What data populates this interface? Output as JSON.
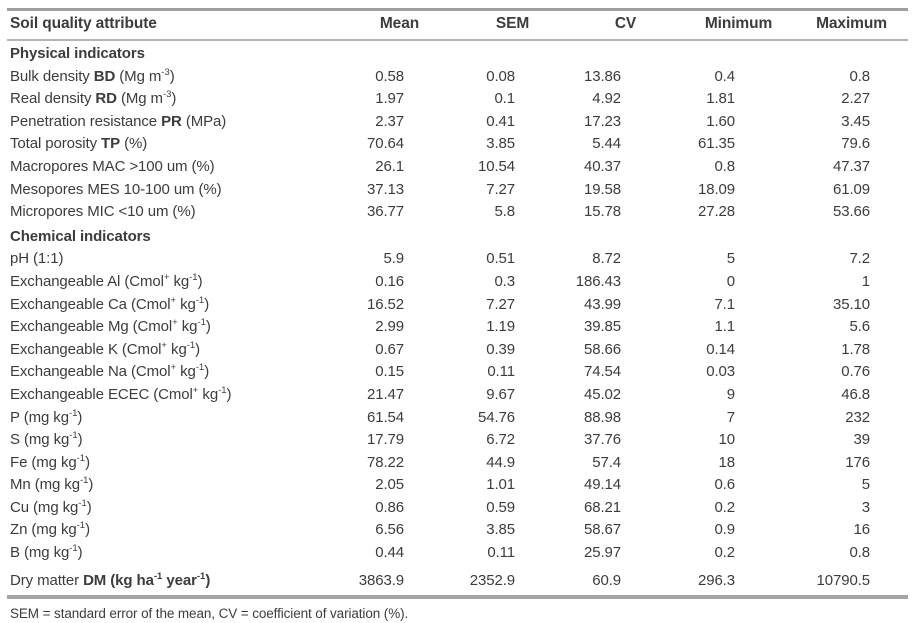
{
  "colors": {
    "text": "#3c3c3c",
    "rule_top": "#9e9e9e",
    "rule_header": "#b3b3b3",
    "rule_bottom": "#a4a4a4"
  },
  "table": {
    "columns": [
      "Soil quality attribute",
      "Mean",
      "SEM",
      "CV",
      "Minimum",
      "Maximum"
    ],
    "sections": [
      {
        "title": "Physical indicators",
        "rows": [
          {
            "label": "Bulk density <b>BD</b> (Mg m<sup>-3</sup>)",
            "values": [
              "0.58",
              "0.08",
              "13.86",
              "0.4",
              "0.8"
            ]
          },
          {
            "label": "Real density <b>RD</b> (Mg m<sup>-3</sup>)",
            "values": [
              "1.97",
              "0.1",
              "4.92",
              "1.81",
              "2.27"
            ]
          },
          {
            "label": "Penetration resistance <b>PR</b> (MPa)",
            "values": [
              "2.37",
              "0.41",
              "17.23",
              "1.60",
              "3.45"
            ]
          },
          {
            "label": "Total porosity <b>TP</b> (%)",
            "values": [
              "70.64",
              "3.85",
              "5.44",
              "61.35",
              "79.6"
            ]
          },
          {
            "label": "Macropores MAC &gt;100 um (%)",
            "values": [
              "26.1",
              "10.54",
              "40.37",
              "0.8",
              "47.37"
            ]
          },
          {
            "label": "Mesopores MES 10-100 um (%)",
            "values": [
              "37.13",
              "7.27",
              "19.58",
              "18.09",
              "61.09"
            ]
          },
          {
            "label": "Micropores MIC &lt;10 um (%)",
            "values": [
              "36.77",
              "5.8",
              "15.78",
              "27.28",
              "53.66"
            ]
          }
        ]
      },
      {
        "title": "Chemical indicators",
        "rows": [
          {
            "label": "pH (1:1)",
            "values": [
              "5.9",
              "0.51",
              "8.72",
              "5",
              "7.2"
            ]
          },
          {
            "label": "Exchangeable Al (Cmol<sup>+</sup> kg<sup>-1</sup>)",
            "values": [
              "0.16",
              "0.3",
              "186.43",
              "0",
              "1"
            ]
          },
          {
            "label": "Exchangeable Ca (Cmol<sup>+</sup> kg<sup>-1</sup>)",
            "values": [
              "16.52",
              "7.27",
              "43.99",
              "7.1",
              "35.10"
            ]
          },
          {
            "label": "Exchangeable Mg (Cmol<sup>+</sup> kg<sup>-1</sup>)",
            "values": [
              "2.99",
              "1.19",
              "39.85",
              "1.1",
              "5.6"
            ]
          },
          {
            "label": "Exchangeable K (Cmol<sup>+</sup> kg<sup>-1</sup>)",
            "values": [
              "0.67",
              "0.39",
              "58.66",
              "0.14",
              "1.78"
            ]
          },
          {
            "label": "Exchangeable Na (Cmol<sup>+</sup> kg<sup>-1</sup>)",
            "values": [
              "0.15",
              "0.11",
              "74.54",
              "0.03",
              "0.76"
            ]
          },
          {
            "label": "Exchangeable ECEC (Cmol<sup>+</sup> kg<sup>-1</sup>)",
            "values": [
              "21.47",
              "9.67",
              "45.02",
              "9",
              "46.8"
            ]
          },
          {
            "label": "P (mg kg<sup>-1</sup>)",
            "values": [
              "61.54",
              "54.76",
              "88.98",
              "7",
              "232"
            ]
          },
          {
            "label": "S (mg kg<sup>-1</sup>)",
            "values": [
              "17.79",
              "6.72",
              "37.76",
              "10",
              "39"
            ]
          },
          {
            "label": "Fe (mg kg<sup>-1</sup>)",
            "values": [
              "78.22",
              "44.9",
              "57.4",
              "18",
              "176"
            ]
          },
          {
            "label": "Mn (mg kg<sup>-1</sup>)",
            "values": [
              "2.05",
              "1.01",
              "49.14",
              "0.6",
              "5"
            ]
          },
          {
            "label": "Cu (mg kg<sup>-1</sup>)",
            "values": [
              "0.86",
              "0.59",
              "68.21",
              "0.2",
              "3"
            ]
          },
          {
            "label": "Zn (mg kg<sup>-1</sup>)",
            "values": [
              "6.56",
              "3.85",
              "58.67",
              "0.9",
              "16"
            ]
          },
          {
            "label": "B (mg kg<sup>-1</sup>)",
            "values": [
              "0.44",
              "0.11",
              "25.97",
              "0.2",
              "0.8"
            ]
          }
        ]
      }
    ],
    "summary_row": {
      "label": "Dry matter <b>DM (kg ha<sup>-1</sup> year<sup>-1</sup>)</b>",
      "values": [
        "3863.9",
        "2352.9",
        "60.9",
        "296.3",
        "10790.5"
      ]
    },
    "footnote": "SEM = standard error of the mean, CV = coefficient of variation (%)."
  }
}
